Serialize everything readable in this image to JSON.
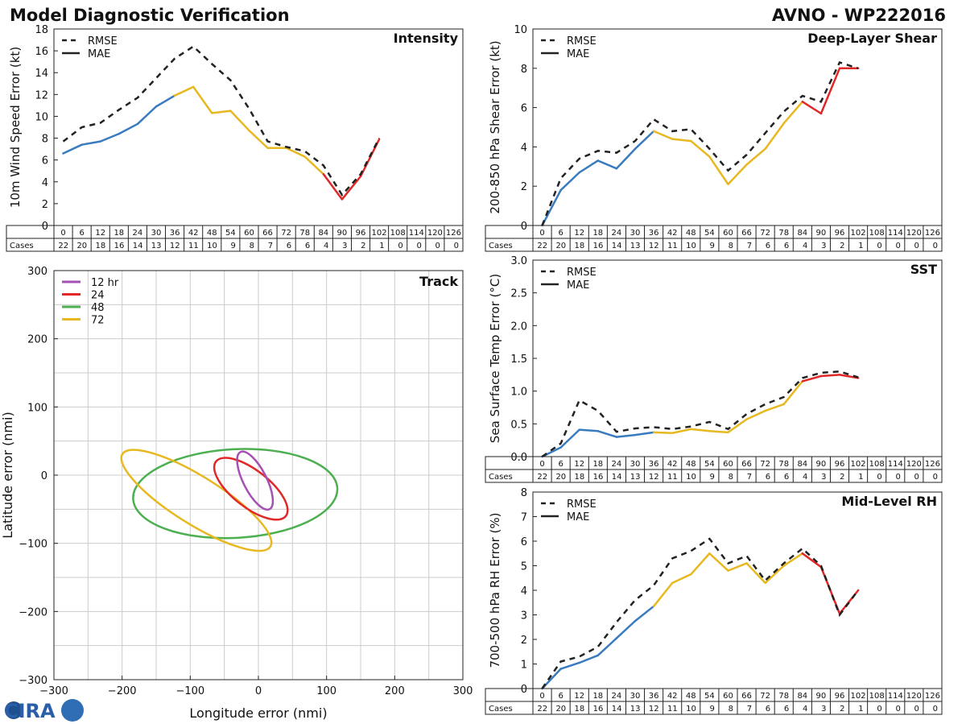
{
  "header": {
    "title": "Model Diagnostic Verification",
    "model_storm": "AVNO - WP222016"
  },
  "logo_text": "CIRA",
  "colors": {
    "phase1": "#3a7bbf",
    "phase2": "#e8b820",
    "phase3": "#e02828",
    "track12": "#a64fb4",
    "track24": "#e02828",
    "track48": "#4caf50",
    "track72": "#e8b820",
    "rmse": "#222222"
  },
  "hours": [
    "0",
    "6",
    "12",
    "18",
    "24",
    "30",
    "36",
    "42",
    "48",
    "54",
    "60",
    "66",
    "72",
    "78",
    "84",
    "90",
    "96",
    "102",
    "108",
    "114",
    "120",
    "126"
  ],
  "cases_label": "Cases",
  "cases": [
    "22",
    "20",
    "18",
    "16",
    "14",
    "13",
    "12",
    "11",
    "10",
    "9",
    "8",
    "7",
    "6",
    "6",
    "4",
    "3",
    "2",
    "1",
    "0",
    "0",
    "0",
    "0"
  ],
  "legend": {
    "rmse": "RMSE",
    "mae": "MAE"
  },
  "chart_data": [
    {
      "id": "intensity",
      "type": "line",
      "title": "Intensity",
      "ylabel": "10m Wind Speed Error (kt)",
      "ylim": [
        0,
        18
      ],
      "yticks": [
        "0",
        "2",
        "4",
        "6",
        "8",
        "10",
        "12",
        "14",
        "16",
        "18"
      ],
      "series": [
        {
          "name": "RMSE",
          "values": [
            7.7,
            9.0,
            9.4,
            10.6,
            11.7,
            13.5,
            15.3,
            16.4,
            14.8,
            13.3,
            10.7,
            7.7,
            7.2,
            6.8,
            5.5,
            2.8,
            4.7,
            8.0
          ]
        },
        {
          "name": "MAE",
          "values": [
            6.6,
            7.4,
            7.7,
            8.4,
            9.3,
            10.9,
            11.9,
            12.7,
            10.3,
            10.5,
            8.7,
            7.1,
            7.1,
            6.3,
            4.7,
            2.4,
            4.5,
            7.9
          ]
        }
      ]
    },
    {
      "id": "shear",
      "type": "line",
      "title": "Deep-Layer Shear",
      "ylabel": "200-850 hPa Shear Error (kt)",
      "ylim": [
        0,
        10
      ],
      "yticks": [
        "0",
        "2",
        "4",
        "6",
        "8",
        "10"
      ],
      "series": [
        {
          "name": "RMSE",
          "values": [
            0.0,
            2.4,
            3.4,
            3.8,
            3.7,
            4.3,
            5.4,
            4.8,
            4.9,
            3.9,
            2.8,
            3.6,
            4.7,
            5.8,
            6.6,
            6.3,
            8.3,
            8.0
          ]
        },
        {
          "name": "MAE",
          "values": [
            0.0,
            1.8,
            2.7,
            3.3,
            2.9,
            3.9,
            4.8,
            4.4,
            4.3,
            3.5,
            2.1,
            3.1,
            3.9,
            5.2,
            6.3,
            5.7,
            8.0,
            8.0
          ]
        }
      ]
    },
    {
      "id": "sst",
      "type": "line",
      "title": "SST",
      "ylabel": "Sea Surface Temp Error (°C)",
      "ylim": [
        0,
        3.0
      ],
      "yticks": [
        "0.0",
        "0.5",
        "1.0",
        "1.5",
        "2.0",
        "2.5",
        "3.0"
      ],
      "series": [
        {
          "name": "RMSE",
          "values": [
            0.0,
            0.2,
            0.86,
            0.7,
            0.38,
            0.43,
            0.45,
            0.42,
            0.46,
            0.53,
            0.42,
            0.65,
            0.8,
            0.91,
            1.2,
            1.28,
            1.3,
            1.21
          ]
        },
        {
          "name": "MAE",
          "values": [
            0.0,
            0.14,
            0.41,
            0.39,
            0.3,
            0.33,
            0.37,
            0.36,
            0.42,
            0.39,
            0.37,
            0.57,
            0.7,
            0.8,
            1.15,
            1.23,
            1.25,
            1.2
          ]
        }
      ]
    },
    {
      "id": "rh",
      "type": "line",
      "title": "Mid-Level RH",
      "ylabel": "700-500 hPa RH Error (%)",
      "ylim": [
        0,
        8
      ],
      "yticks": [
        "0",
        "1",
        "2",
        "3",
        "4",
        "5",
        "6",
        "7",
        "8"
      ],
      "series": [
        {
          "name": "RMSE",
          "values": [
            0.0,
            1.1,
            1.3,
            1.7,
            2.7,
            3.6,
            4.2,
            5.3,
            5.6,
            6.1,
            5.1,
            5.4,
            4.4,
            5.1,
            5.7,
            5.0,
            3.0,
            4.0
          ]
        },
        {
          "name": "MAE",
          "values": [
            0.0,
            0.8,
            1.05,
            1.35,
            2.05,
            2.75,
            3.35,
            4.3,
            4.65,
            5.5,
            4.8,
            5.1,
            4.3,
            5.0,
            5.5,
            4.95,
            3.05,
            4.0
          ]
        }
      ]
    },
    {
      "id": "track",
      "type": "scatter",
      "title": "Track",
      "xlabel": "Longitude error (nmi)",
      "ylabel": "Latitude error (nmi)",
      "xlim": [
        -300,
        300
      ],
      "ylim": [
        -300,
        300
      ],
      "xticks": [
        "−300",
        "−200",
        "−100",
        "0",
        "100",
        "200",
        "300"
      ],
      "yticks": [
        "−300",
        "−200",
        "−100",
        "0",
        "100",
        "200",
        "300"
      ],
      "ellipses": [
        {
          "name": "12 hr",
          "center": [
            -5,
            -8
          ],
          "semi_axes": [
            47,
            17
          ],
          "angle_deg": 63
        },
        {
          "name": "24",
          "center": [
            -11,
            -20
          ],
          "semi_axes": [
            65,
            27
          ],
          "angle_deg": 38
        },
        {
          "name": "48",
          "center": [
            -34,
            -27
          ],
          "semi_axes": [
            150,
            65
          ],
          "angle_deg": -3
        },
        {
          "name": "72",
          "center": [
            -91,
            -37
          ],
          "semi_axes": [
            128,
            35
          ],
          "angle_deg": 32
        }
      ]
    }
  ]
}
